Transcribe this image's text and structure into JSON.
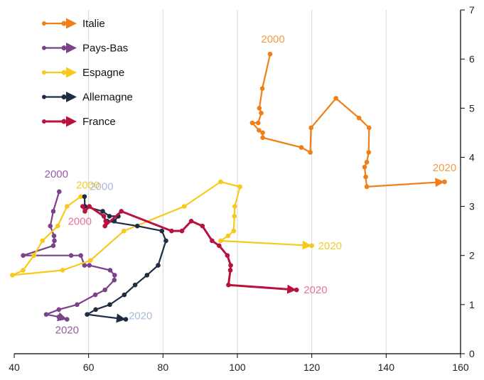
{
  "chart_data": {
    "type": "line",
    "title": "",
    "xlabel": "",
    "ylabel": "",
    "xlim": [
      40,
      160
    ],
    "ylim": [
      0,
      7
    ],
    "xticks": [
      40,
      60,
      80,
      100,
      120,
      140,
      160
    ],
    "yticks": [
      0,
      1,
      2,
      3,
      4,
      5,
      6,
      7
    ],
    "y_axis_side": "right",
    "grid": "vertical gridlines",
    "legend_placement": "top-left",
    "legend_order": [
      "Italie",
      "Pays-Bas",
      "Espagne",
      "Allemagne",
      "France"
    ],
    "series": [
      {
        "name": "Italie",
        "color": "#f07f17",
        "start_label": "2000",
        "end_label": "2020",
        "points": [
          [
            108.8,
            6.1
          ],
          [
            106.7,
            5.4
          ],
          [
            105.9,
            5.0
          ],
          [
            106.4,
            4.9
          ],
          [
            105.6,
            4.7
          ],
          [
            104.0,
            4.7
          ],
          [
            105.8,
            4.55
          ],
          [
            106.8,
            4.5
          ],
          [
            106.8,
            4.4
          ],
          [
            117.2,
            4.2
          ],
          [
            119.6,
            4.1
          ],
          [
            119.8,
            4.6
          ],
          [
            126.5,
            5.2
          ],
          [
            132.7,
            4.8
          ],
          [
            135.4,
            4.6
          ],
          [
            135.3,
            4.1
          ],
          [
            134.8,
            3.9
          ],
          [
            134.2,
            3.8
          ],
          [
            134.5,
            3.6
          ],
          [
            134.8,
            3.4
          ],
          [
            155.7,
            3.5
          ]
        ]
      },
      {
        "name": "Pays-Bas",
        "color": "#7b4289",
        "start_label": "2000",
        "end_label": "2020",
        "points": [
          [
            52.1,
            3.3
          ],
          [
            50.5,
            2.9
          ],
          [
            49.7,
            2.6
          ],
          [
            50.7,
            2.4
          ],
          [
            50.8,
            2.3
          ],
          [
            50.5,
            2.2
          ],
          [
            42.4,
            2.0
          ],
          [
            55.3,
            2.0
          ],
          [
            57.9,
            2.0
          ],
          [
            58.9,
            1.8
          ],
          [
            60.2,
            1.8
          ],
          [
            65.8,
            1.7
          ],
          [
            67.0,
            1.6
          ],
          [
            66.9,
            1.5
          ],
          [
            64.4,
            1.3
          ],
          [
            61.8,
            1.2
          ],
          [
            56.9,
            1.0
          ],
          [
            52.0,
            0.9
          ],
          [
            48.6,
            0.8
          ],
          [
            52.0,
            0.75
          ],
          [
            54.2,
            0.7
          ]
        ]
      },
      {
        "name": "Espagne",
        "color": "#f8c91c",
        "start_label": "2000",
        "end_label": "2020",
        "points": [
          [
            57.9,
            3.2
          ],
          [
            54.2,
            3.0
          ],
          [
            51.7,
            2.6
          ],
          [
            47.6,
            2.3
          ],
          [
            45.3,
            2.0
          ],
          [
            42.4,
            1.7
          ],
          [
            39.5,
            1.6
          ],
          [
            53.0,
            1.7
          ],
          [
            60.5,
            1.9
          ],
          [
            69.5,
            2.5
          ],
          [
            85.7,
            3.0
          ],
          [
            95.5,
            3.5
          ],
          [
            100.7,
            3.4
          ],
          [
            99.3,
            3.0
          ],
          [
            99.2,
            2.8
          ],
          [
            99.0,
            2.5
          ],
          [
            97.5,
            2.4
          ],
          [
            95.5,
            2.3
          ],
          [
            120.0,
            2.2
          ]
        ]
      },
      {
        "name": "Allemagne",
        "color": "#1f2d44",
        "start_label": "2000",
        "end_label": "2020",
        "points": [
          [
            58.9,
            3.2
          ],
          [
            59.0,
            3.0
          ],
          [
            63.8,
            2.9
          ],
          [
            65.6,
            2.8
          ],
          [
            68.0,
            2.8
          ],
          [
            66.9,
            2.7
          ],
          [
            65.0,
            2.7
          ],
          [
            73.1,
            2.6
          ],
          [
            79.7,
            2.5
          ],
          [
            80.8,
            2.3
          ],
          [
            78.7,
            1.8
          ],
          [
            75.7,
            1.6
          ],
          [
            72.5,
            1.4
          ],
          [
            69.6,
            1.2
          ],
          [
            65.7,
            1.0
          ],
          [
            61.9,
            0.9
          ],
          [
            59.6,
            0.8
          ],
          [
            70.0,
            0.7
          ]
        ]
      },
      {
        "name": "France",
        "color": "#b8123f",
        "start_label": "2000",
        "end_label": "2020",
        "points": [
          [
            58.4,
            3.0
          ],
          [
            59.0,
            2.9
          ],
          [
            60.2,
            3.0
          ],
          [
            64.1,
            2.8
          ],
          [
            64.6,
            2.7
          ],
          [
            64.4,
            2.6
          ],
          [
            68.8,
            2.9
          ],
          [
            82.3,
            2.5
          ],
          [
            85.1,
            2.5
          ],
          [
            87.6,
            2.7
          ],
          [
            90.6,
            2.6
          ],
          [
            93.2,
            2.3
          ],
          [
            95.1,
            2.2
          ],
          [
            97.3,
            2.0
          ],
          [
            98.2,
            1.8
          ],
          [
            98.1,
            1.7
          ],
          [
            97.6,
            1.4
          ],
          [
            115.9,
            1.3
          ]
        ]
      }
    ]
  }
}
